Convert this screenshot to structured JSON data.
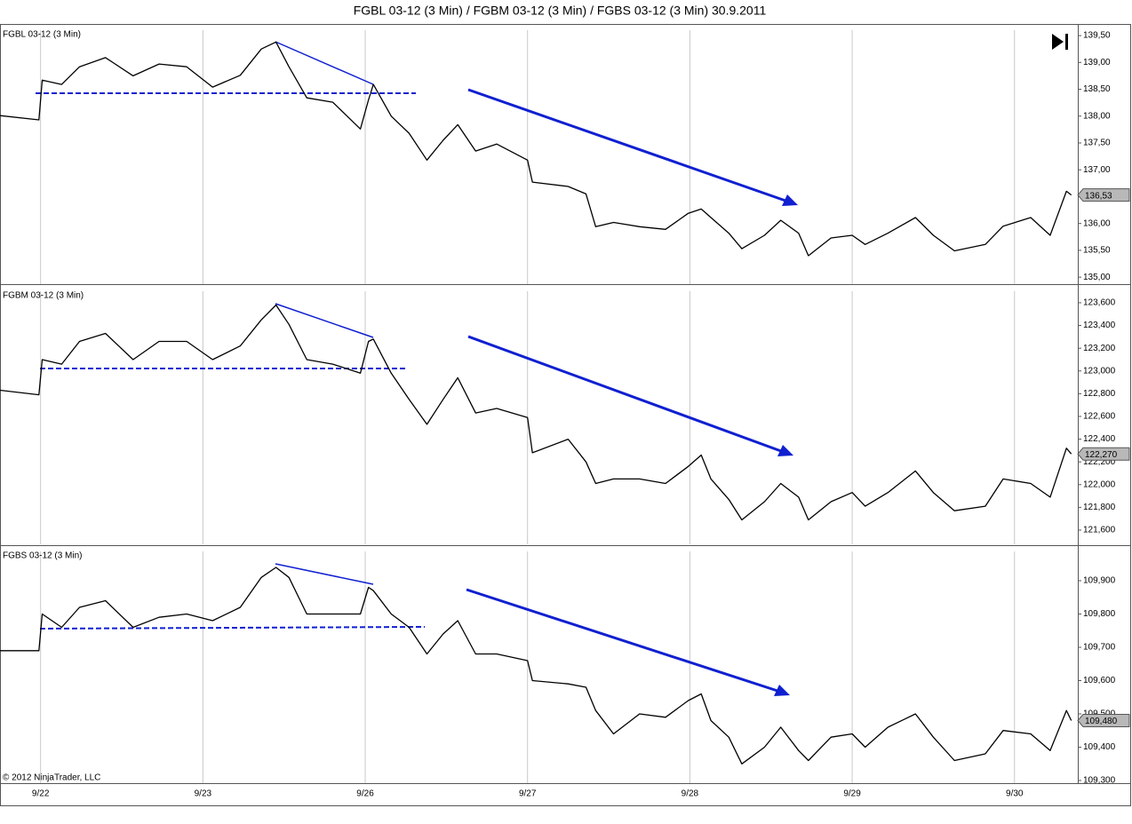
{
  "title": "FGBL 03-12 (3 Min) / FGBM 03-12 (3 Min) / FGBS 03-12 (3 Min)  30.9.2011",
  "copyright": "© 2012 NinjaTrader, LLC",
  "x_axis": {
    "xlim": [
      -0.25,
      6.39
    ],
    "xticks": [
      {
        "value": 0,
        "label": "9/22"
      },
      {
        "value": 1,
        "label": "9/23"
      },
      {
        "value": 2,
        "label": "9/26"
      },
      {
        "value": 3,
        "label": "9/27"
      },
      {
        "value": 4,
        "label": "9/28"
      },
      {
        "value": 5,
        "label": "9/29"
      },
      {
        "value": 6,
        "label": "9/30"
      }
    ]
  },
  "chart_data": [
    {
      "type": "line",
      "title": "FGBL 03-12 (3 Min)",
      "color": "#000000",
      "x": [
        -0.25,
        -0.01,
        0.01,
        0.13,
        0.24,
        0.4,
        0.57,
        0.73,
        0.9,
        1.06,
        1.23,
        1.36,
        1.45,
        1.53,
        1.64,
        1.8,
        1.97,
        2.02,
        2.05,
        2.16,
        2.27,
        2.38,
        2.48,
        2.57,
        2.68,
        2.81,
        3.0,
        3.03,
        3.25,
        3.36,
        3.42,
        3.53,
        3.69,
        3.85,
        3.99,
        4.07,
        4.13,
        4.24,
        4.32,
        4.46,
        4.56,
        4.67,
        4.73,
        4.87,
        5.0,
        5.08,
        5.22,
        5.39,
        5.5,
        5.63,
        5.82,
        5.93,
        6.1,
        6.22,
        6.32,
        6.35
      ],
      "values": [
        138.01,
        137.93,
        138.67,
        138.59,
        138.92,
        139.09,
        138.75,
        138.97,
        138.92,
        138.54,
        138.76,
        139.25,
        139.38,
        138.92,
        138.34,
        138.26,
        137.76,
        138.3,
        138.59,
        138.0,
        137.68,
        137.18,
        137.55,
        137.84,
        137.35,
        137.48,
        137.18,
        136.77,
        136.69,
        136.55,
        135.94,
        136.02,
        135.94,
        135.89,
        136.19,
        136.27,
        136.11,
        135.82,
        135.53,
        135.78,
        136.06,
        135.82,
        135.4,
        135.73,
        135.78,
        135.61,
        135.82,
        136.11,
        135.78,
        135.49,
        135.61,
        135.95,
        136.11,
        135.78,
        136.6,
        136.53
      ],
      "last_price": {
        "value": 136.53,
        "label": "136,53"
      },
      "ylim": [
        134.87,
        139.7
      ],
      "yticks": [
        {
          "value": 139.5,
          "label": "139,50"
        },
        {
          "value": 139.0,
          "label": "139,00"
        },
        {
          "value": 138.5,
          "label": "138,50"
        },
        {
          "value": 138.0,
          "label": "138,00"
        },
        {
          "value": 137.5,
          "label": "137,50"
        },
        {
          "value": 137.0,
          "label": "137,00"
        },
        {
          "value": 136.5,
          "label": "136,50"
        },
        {
          "value": 136.0,
          "label": "136,00"
        },
        {
          "value": 135.5,
          "label": "135,50"
        },
        {
          "value": 135.0,
          "label": "135,00"
        }
      ]
    },
    {
      "type": "line",
      "title": "FGBM 03-12 (3 Min)",
      "color": "#000000",
      "x": [
        -0.25,
        -0.01,
        0.01,
        0.13,
        0.24,
        0.4,
        0.57,
        0.73,
        0.9,
        1.06,
        1.23,
        1.36,
        1.45,
        1.53,
        1.64,
        1.8,
        1.97,
        2.02,
        2.05,
        2.16,
        2.27,
        2.38,
        2.48,
        2.57,
        2.68,
        2.81,
        3.0,
        3.03,
        3.25,
        3.36,
        3.42,
        3.53,
        3.69,
        3.85,
        3.99,
        4.07,
        4.13,
        4.24,
        4.32,
        4.46,
        4.56,
        4.67,
        4.73,
        4.87,
        5.0,
        5.08,
        5.22,
        5.39,
        5.5,
        5.63,
        5.82,
        5.93,
        6.1,
        6.22,
        6.32,
        6.35
      ],
      "values": [
        122.83,
        122.79,
        123.1,
        123.06,
        123.26,
        123.33,
        123.1,
        123.26,
        123.26,
        123.1,
        123.22,
        123.45,
        123.58,
        123.41,
        123.1,
        123.06,
        122.98,
        123.26,
        123.28,
        122.98,
        122.75,
        122.53,
        122.75,
        122.94,
        122.63,
        122.67,
        122.59,
        122.28,
        122.4,
        122.2,
        122.01,
        122.05,
        122.05,
        122.01,
        122.16,
        122.26,
        122.05,
        121.87,
        121.69,
        121.85,
        122.01,
        121.89,
        121.69,
        121.85,
        121.93,
        121.81,
        121.93,
        122.12,
        121.93,
        121.77,
        121.81,
        122.05,
        122.01,
        121.89,
        122.32,
        122.27
      ],
      "last_price": {
        "value": 122.27,
        "label": "122,270"
      },
      "ylim": [
        121.475,
        123.748
      ],
      "yticks": [
        {
          "value": 123.6,
          "label": "123,600"
        },
        {
          "value": 123.4,
          "label": "123,400"
        },
        {
          "value": 123.2,
          "label": "123,200"
        },
        {
          "value": 123.0,
          "label": "123,000"
        },
        {
          "value": 122.8,
          "label": "122,800"
        },
        {
          "value": 122.6,
          "label": "122,600"
        },
        {
          "value": 122.4,
          "label": "122,400"
        },
        {
          "value": 122.2,
          "label": "122,200"
        },
        {
          "value": 122.0,
          "label": "122,000"
        },
        {
          "value": 121.8,
          "label": "121,800"
        },
        {
          "value": 121.6,
          "label": "121,600"
        }
      ]
    },
    {
      "type": "line",
      "title": "FGBS 03-12 (3 Min)",
      "color": "#000000",
      "x": [
        -0.25,
        -0.01,
        0.01,
        0.13,
        0.24,
        0.4,
        0.57,
        0.73,
        0.9,
        1.06,
        1.23,
        1.36,
        1.45,
        1.53,
        1.64,
        1.8,
        1.97,
        2.02,
        2.05,
        2.16,
        2.27,
        2.38,
        2.48,
        2.57,
        2.68,
        2.81,
        3.0,
        3.03,
        3.25,
        3.36,
        3.42,
        3.53,
        3.69,
        3.85,
        3.99,
        4.07,
        4.13,
        4.24,
        4.32,
        4.46,
        4.56,
        4.67,
        4.73,
        4.87,
        5.0,
        5.08,
        5.22,
        5.39,
        5.5,
        5.63,
        5.82,
        5.93,
        6.1,
        6.22,
        6.32,
        6.35
      ],
      "values": [
        109.69,
        109.69,
        109.8,
        109.76,
        109.82,
        109.84,
        109.76,
        109.79,
        109.8,
        109.78,
        109.82,
        109.91,
        109.94,
        109.91,
        109.8,
        109.8,
        109.8,
        109.88,
        109.87,
        109.8,
        109.76,
        109.68,
        109.74,
        109.78,
        109.68,
        109.68,
        109.66,
        109.6,
        109.59,
        109.58,
        109.51,
        109.44,
        109.5,
        109.49,
        109.54,
        109.56,
        109.48,
        109.43,
        109.35,
        109.4,
        109.46,
        109.39,
        109.36,
        109.43,
        109.44,
        109.4,
        109.46,
        109.5,
        109.43,
        109.36,
        109.38,
        109.45,
        109.44,
        109.39,
        109.51,
        109.48
      ],
      "last_price": {
        "value": 109.48,
        "label": "109,480"
      },
      "ylim": [
        109.292,
        110.004
      ],
      "yticks": [
        {
          "value": 109.9,
          "label": "109,900"
        },
        {
          "value": 109.8,
          "label": "109,800"
        },
        {
          "value": 109.7,
          "label": "109,700"
        },
        {
          "value": 109.6,
          "label": "109,600"
        },
        {
          "value": 109.5,
          "label": "109,500"
        },
        {
          "value": 109.4,
          "label": "109,400"
        },
        {
          "value": 109.3,
          "label": "109,300"
        }
      ]
    }
  ]
}
